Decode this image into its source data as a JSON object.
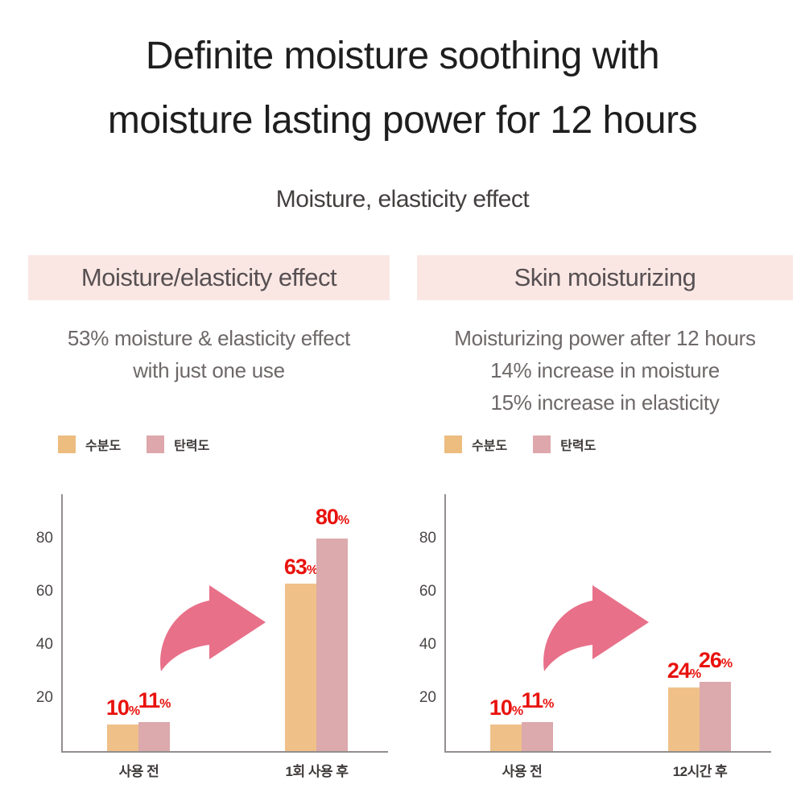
{
  "title": {
    "line1": "Definite moisture soothing with",
    "line2": "moisture lasting power for 12 hours"
  },
  "subtitle": "Moisture, elasticity effect",
  "panels": [
    {
      "header": "Moisture/elasticity effect",
      "description_lines": [
        "53% moisture & elasticity effect",
        "with just one use"
      ]
    },
    {
      "header": "Skin moisturizing",
      "description_lines": [
        "Moisturizing power after 12 hours",
        "14% increase in moisture",
        "15% increase in elasticity"
      ]
    }
  ],
  "legend": {
    "items": [
      {
        "label": "수분도",
        "color": "#edbc7f"
      },
      {
        "label": "탄력도",
        "color": "#dda7ab"
      }
    ]
  },
  "colors": {
    "header_bg": "#fae7e4",
    "value_label_red": "#e8120d",
    "arrow_pink": "#e87089",
    "bar_moisture_orange": "#efc189",
    "bar_elasticity_pink": "#dca9ac",
    "axis_gray": "#948e8e"
  },
  "chart_data": [
    {
      "type": "bar",
      "title": "Moisture/elasticity effect",
      "categories": [
        "사용 전",
        "1회 사용 후"
      ],
      "series": [
        {
          "name": "수분도",
          "color": "#efc189",
          "values": [
            10,
            63
          ]
        },
        {
          "name": "탄력도",
          "color": "#dca9ac",
          "values": [
            11,
            80
          ]
        }
      ],
      "unit": "%",
      "yticks": [
        20,
        40,
        60,
        80
      ],
      "ylim": [
        0,
        95
      ],
      "grid": false,
      "legend_position": "top-left",
      "annotation": "pink curved arrow pointing up-right between the two groups"
    },
    {
      "type": "bar",
      "title": "Skin moisturizing",
      "categories": [
        "사용 전",
        "12시간 후"
      ],
      "series": [
        {
          "name": "수분도",
          "color": "#efc189",
          "values": [
            10,
            24
          ]
        },
        {
          "name": "탄력도",
          "color": "#dca9ac",
          "values": [
            11,
            26
          ]
        }
      ],
      "unit": "%",
      "yticks": [
        20,
        40,
        60,
        80
      ],
      "ylim": [
        0,
        95
      ],
      "grid": false,
      "legend_position": "top-left",
      "annotation": "pink curved arrow pointing up-right between the two groups"
    }
  ]
}
